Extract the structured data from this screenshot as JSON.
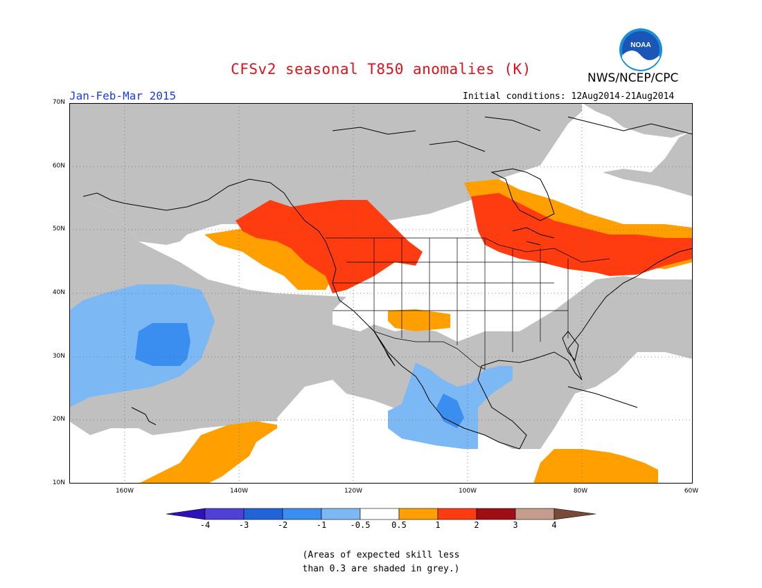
{
  "header": {
    "title": "CFSv2 seasonal T850 anomalies (K)",
    "org": "NWS/NCEP/CPC",
    "logo_text": "NOAA",
    "period": "Jan-Feb-Mar 2015",
    "initial_conditions": "Initial conditions: 12Aug2014-21Aug2014"
  },
  "axes": {
    "lat_labels": [
      "70N",
      "60N",
      "50N",
      "40N",
      "30N",
      "20N",
      "10N"
    ],
    "lon_labels": [
      "160W",
      "140W",
      "120W",
      "100W",
      "80W",
      "60W"
    ]
  },
  "colorbar": {
    "labels": [
      "-4",
      "-3",
      "-2",
      "-1",
      "-0.5",
      "0.5",
      "1",
      "2",
      "3",
      "4"
    ],
    "colors": [
      "#3010b8",
      "#5040d8",
      "#1f64d8",
      "#3a8ef0",
      "#7cb8f4",
      "#ffffff",
      "#ff9f00",
      "#ff3c10",
      "#a00e14",
      "#c69c8c",
      "#7a4a38"
    ]
  },
  "note": {
    "line1": "(Areas of expected skill less",
    "line2": "than 0.3 are shaded in grey.)"
  },
  "colors": {
    "grey": "#c0c0c0",
    "light_blue": "#7cb8f4",
    "mid_blue": "#3a8ef0",
    "orange": "#ff9f00",
    "red": "#ff3c10",
    "title_red": "#e0101a",
    "period_blue": "#1a3cd8"
  }
}
